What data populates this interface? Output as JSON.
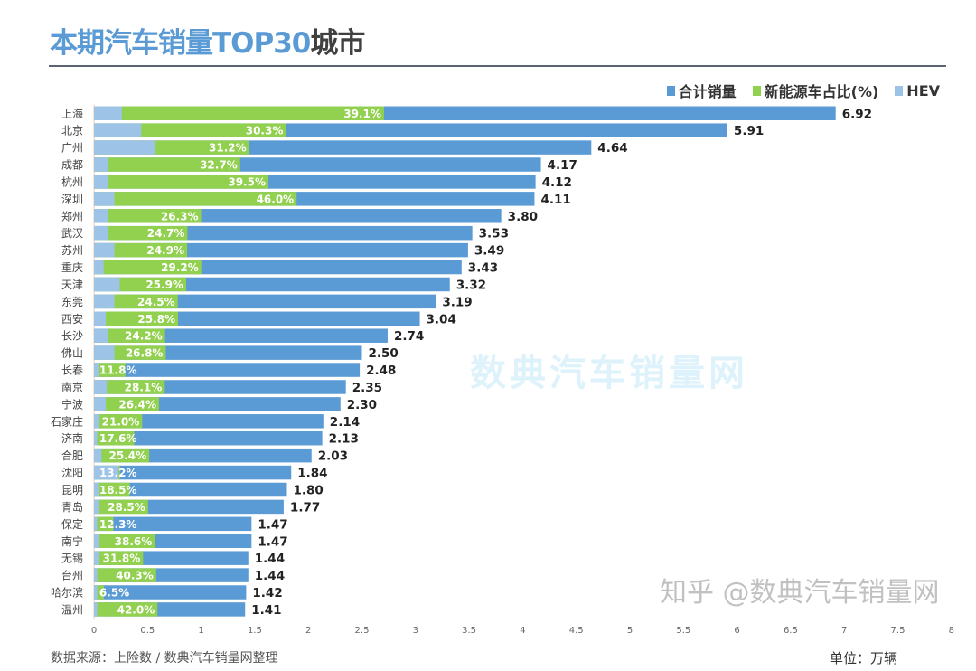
{
  "title": {
    "part1": "本期汽车销量TOP30",
    "part2": "城市"
  },
  "legend": [
    {
      "label": "合计销量",
      "color": "#5b9bd5"
    },
    {
      "label": "新能源车占比(%)",
      "color": "#92d050"
    },
    {
      "label": "HEV",
      "color": "#9dc3e6"
    }
  ],
  "source": "数据来源：上险数 / 数典汽车销量网整理",
  "unit": "单位：万辆",
  "watermarks": {
    "center": "数典汽车销量网",
    "corner": "知乎 @数典汽车销量网"
  },
  "chart_data": {
    "type": "bar",
    "orientation": "horizontal",
    "title": "本期汽车销量TOP30城市",
    "xlim": [
      0,
      8
    ],
    "xticks": [
      "0",
      "0.5",
      "1",
      "1.5",
      "2",
      "2.5",
      "3",
      "3.5",
      "4",
      "4.5",
      "5",
      "5.5",
      "6",
      "6.5",
      "7",
      "7.5",
      "8"
    ],
    "grid": false,
    "legend_position": "top-right",
    "categories": [
      "上海",
      "北京",
      "广州",
      "成都",
      "杭州",
      "深圳",
      "郑州",
      "武汉",
      "苏州",
      "重庆",
      "天津",
      "东莞",
      "西安",
      "长沙",
      "佛山",
      "长春",
      "南京",
      "宁波",
      "石家庄",
      "济南",
      "合肥",
      "沈阳",
      "昆明",
      "青岛",
      "保定",
      "南宁",
      "无锡",
      "台州",
      "哈尔滨",
      "温州"
    ],
    "series": [
      {
        "name": "合计销量",
        "values": [
          6.92,
          5.91,
          4.64,
          4.17,
          4.12,
          4.11,
          3.8,
          3.53,
          3.49,
          3.43,
          3.32,
          3.19,
          3.04,
          2.74,
          2.5,
          2.48,
          2.35,
          2.3,
          2.14,
          2.13,
          2.03,
          1.84,
          1.8,
          1.77,
          1.47,
          1.47,
          1.44,
          1.44,
          1.42,
          1.41
        ],
        "labels": [
          "6.92",
          "5.91",
          "4.64",
          "4.17",
          "4.12",
          "4.11",
          "3.80",
          "3.53",
          "3.49",
          "3.43",
          "3.32",
          "3.19",
          "3.04",
          "2.74",
          "2.50",
          "2.48",
          "2.35",
          "2.30",
          "2.14",
          "2.13",
          "2.03",
          "1.84",
          "1.80",
          "1.77",
          "1.47",
          "1.47",
          "1.44",
          "1.44",
          "1.42",
          "1.41"
        ]
      },
      {
        "name": "新能源车占比(%)",
        "values": [
          39.1,
          30.3,
          31.2,
          32.7,
          39.5,
          46.0,
          26.3,
          24.7,
          24.9,
          29.2,
          25.9,
          24.5,
          25.8,
          24.2,
          26.8,
          11.8,
          28.1,
          26.4,
          21.0,
          17.6,
          25.4,
          13.2,
          18.5,
          28.5,
          12.3,
          38.6,
          31.8,
          40.3,
          6.5,
          42.0
        ],
        "labels": [
          "39.1%",
          "30.3%",
          "31.2%",
          "32.7%",
          "39.5%",
          "46.0%",
          "26.3%",
          "24.7%",
          "24.9%",
          "29.2%",
          "25.9%",
          "24.5%",
          "25.8%",
          "24.2%",
          "26.8%",
          "11.8%",
          "28.1%",
          "26.4%",
          "21.0%",
          "17.6%",
          "25.4%",
          "13.2%",
          "18.5%",
          "28.5%",
          "12.3%",
          "38.6%",
          "31.8%",
          "40.3%",
          "6.5%",
          "42.0%"
        ]
      },
      {
        "name": "HEV",
        "values": [
          0.26,
          0.44,
          0.57,
          0.13,
          0.13,
          0.19,
          0.13,
          0.13,
          0.19,
          0.09,
          0.24,
          0.19,
          0.11,
          0.13,
          0.19,
          0.05,
          0.12,
          0.11,
          0.05,
          0.03,
          0.07,
          0.23,
          0.05,
          0.05,
          0.03,
          0.05,
          0.05,
          0.03,
          0.03,
          0.03
        ]
      }
    ]
  }
}
